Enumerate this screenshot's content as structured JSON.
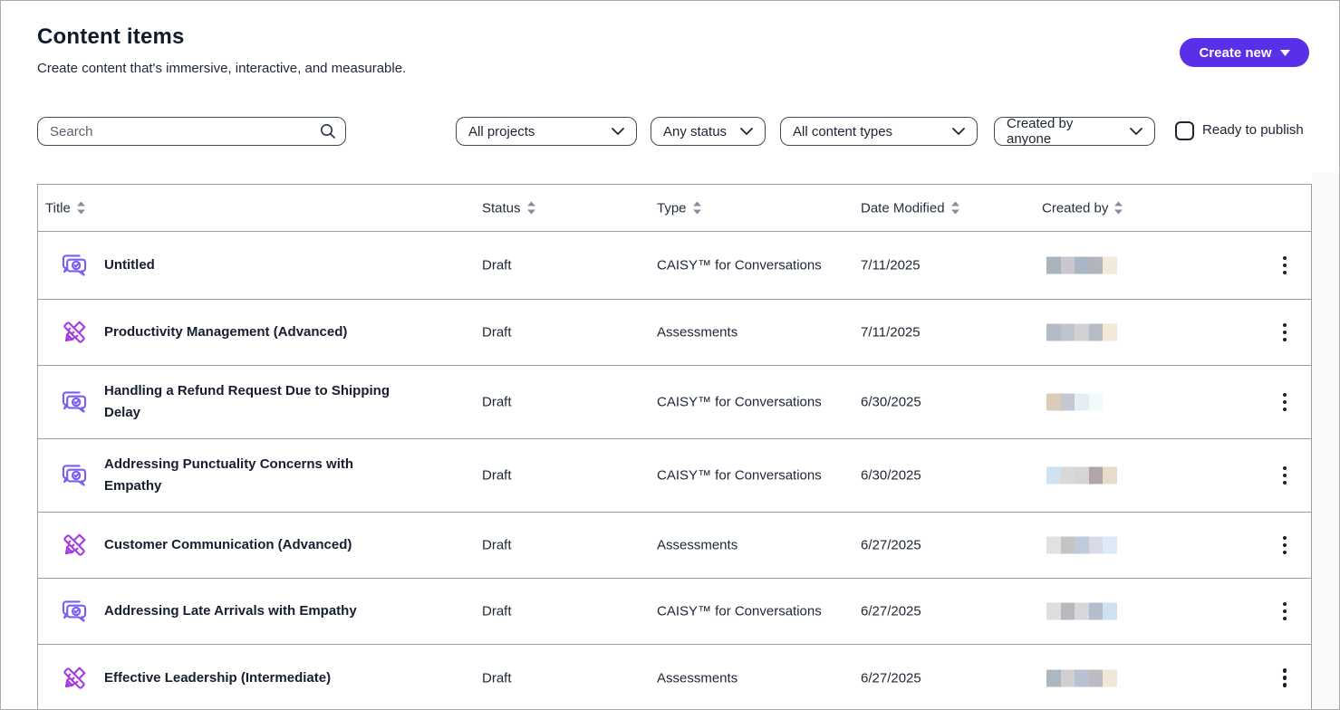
{
  "page": {
    "title": "Content items",
    "subtitle": "Create content that's immersive, interactive, and measurable."
  },
  "create_button": {
    "label": "Create new"
  },
  "filters": {
    "search_placeholder": "Search",
    "projects_selected": "All projects",
    "status_selected": "Any status",
    "content_types_selected": "All content types",
    "created_by_selected": "Created by anyone",
    "ready_to_publish_label": "Ready to publish",
    "ready_to_publish_checked": false
  },
  "table": {
    "columns": [
      "Title",
      "Status",
      "Type",
      "Date Modified",
      "Created by"
    ],
    "rows": [
      {
        "icon": "conversation-icon",
        "title": "Untitled",
        "status": "Draft",
        "type": "CAISY™ for Conversations",
        "date": "7/11/2025",
        "creator_redacted_blocks": [
          "#a8b3bc",
          "#c8c7cd",
          "#a9b6c5",
          "#b2b6bc",
          "#f2e9da"
        ]
      },
      {
        "icon": "assessment-icon",
        "title": "Productivity Management (Advanced)",
        "status": "Draft",
        "type": "Assessments",
        "date": "7/11/2025",
        "creator_redacted_blocks": [
          "#b3bbc8",
          "#bec5d1",
          "#d2d2d5",
          "#b7bbc6",
          "#f3e7d7"
        ]
      },
      {
        "icon": "conversation-icon",
        "title": "Handling a Refund Request Due to Shipping Delay",
        "status": "Draft",
        "type": "CAISY™ for Conversations",
        "date": "6/30/2025",
        "creator_redacted_blocks": [
          "#dccaba",
          "#c3c8d3",
          "#e7edf5",
          "#f2f9f9"
        ]
      },
      {
        "icon": "conversation-icon",
        "title": "Addressing Punctuality Concerns with Empathy",
        "status": "Draft",
        "type": "CAISY™ for Conversations",
        "date": "6/30/2025",
        "creator_redacted_blocks": [
          "#cfe2ef",
          "#d8d8d8",
          "#d7d4d5",
          "#b1a5a7",
          "#e7dcc8"
        ]
      },
      {
        "icon": "assessment-icon",
        "title": "Customer Communication (Advanced)",
        "status": "Draft",
        "type": "Assessments",
        "date": "6/27/2025",
        "creator_redacted_blocks": [
          "#e1e1e1",
          "#c5c3c4",
          "#bfcada",
          "#d8dbe7",
          "#dce9f9"
        ]
      },
      {
        "icon": "conversation-icon",
        "title": "Addressing Late Arrivals with Empathy",
        "status": "Draft",
        "type": "CAISY™ for Conversations",
        "date": "6/27/2025",
        "creator_redacted_blocks": [
          "#e0dedc",
          "#b7b9bc",
          "#d7d6db",
          "#b3becd",
          "#cee1f1"
        ]
      },
      {
        "icon": "assessment-icon",
        "title": "Effective Leadership (Intermediate)",
        "status": "Draft",
        "type": "Assessments",
        "date": "6/27/2025",
        "creator_redacted_blocks": [
          "#acb7c1",
          "#d1cfd2",
          "#b7c1d1",
          "#bbbbc1",
          "#efe7d7"
        ]
      }
    ]
  },
  "colors": {
    "accent_purple": "#5a2fe8",
    "conversation_icon": "#7b5cf6",
    "assessment_icon": "#a43be0",
    "table_border": "#999ea6",
    "text_dark": "#1c2433"
  }
}
